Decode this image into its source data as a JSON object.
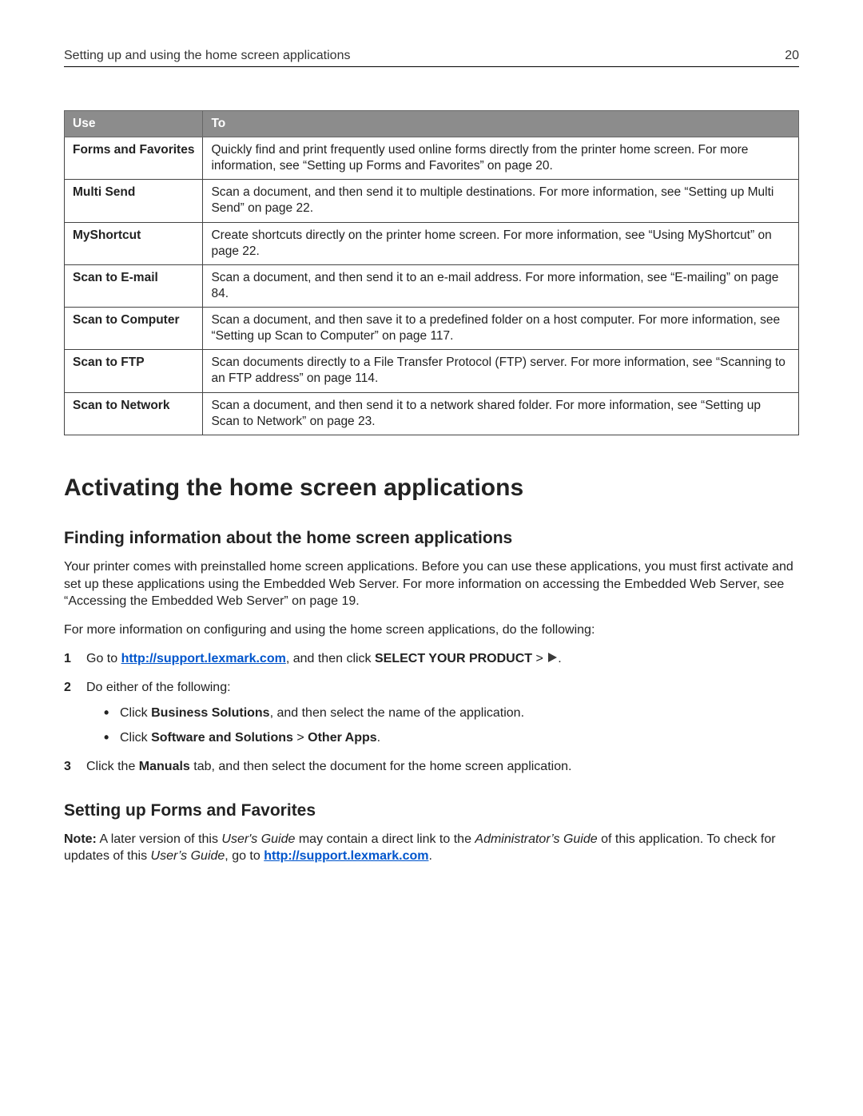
{
  "header": {
    "title": "Setting up and using the home screen applications",
    "page": "20"
  },
  "table": {
    "header_bg": "#8c8c8c",
    "header_fg": "#ffffff",
    "border_color": "#444444",
    "col_use": "Use",
    "col_to": "To",
    "rows": [
      {
        "use": "Forms and Favorites",
        "to": "Quickly find and print frequently used online forms directly from the printer home screen. For more information, see “Setting up Forms and Favorites” on page 20."
      },
      {
        "use": "Multi Send",
        "to": "Scan a document, and then send it to multiple destinations. For more information, see “Setting up Multi Send” on page 22."
      },
      {
        "use": "MyShortcut",
        "to": "Create shortcuts directly on the printer home screen. For more information, see “Using MyShortcut” on page 22."
      },
      {
        "use": "Scan to E-mail",
        "to": "Scan a document, and then send it to an e-mail address. For more information, see “E-mailing” on page 84."
      },
      {
        "use": "Scan to Computer",
        "to": "Scan a document, and then save it to a predefined folder on a host computer. For more information, see “Setting up Scan to Computer” on page 117."
      },
      {
        "use": "Scan to FTP",
        "to": "Scan documents directly to a File Transfer Protocol (FTP) server. For more information, see “Scanning to an FTP address” on page 114."
      },
      {
        "use": "Scan to Network",
        "to": "Scan a document, and then send it to a network shared folder. For more information, see “Setting up Scan to Network” on page 23."
      }
    ]
  },
  "h1": "Activating the home screen applications",
  "h2_finding": "Finding information about the home screen applications",
  "para_intro": "Your printer comes with preinstalled home screen applications. Before you can use these applications, you must first activate and set up these applications using the Embedded Web Server. For more information on accessing the Embedded Web Server, see “Accessing the Embedded Web Server” on page 19.",
  "para_more": "For more information on configuring and using the home screen applications, do the following:",
  "steps": {
    "s1_pre": "Go to ",
    "s1_link": "http://support.lexmark.com",
    "s1_mid": ", and then click ",
    "s1_bold": "SELECT YOUR PRODUCT",
    "s1_post": " > ",
    "s1_tail": ".",
    "s2": "Do either of the following:",
    "s2_b1_pre": "Click ",
    "s2_b1_bold": "Business Solutions",
    "s2_b1_post": ", and then select the name of the application.",
    "s2_b2_pre": "Click ",
    "s2_b2_bold1": "Software and Solutions",
    "s2_b2_mid": " > ",
    "s2_b2_bold2": "Other Apps",
    "s2_b2_post": ".",
    "s3_pre": "Click the ",
    "s3_bold": "Manuals",
    "s3_post": " tab, and then select the document for the home screen application."
  },
  "h2_forms": "Setting up Forms and Favorites",
  "note": {
    "label": "Note:",
    "t1": " A later version of this ",
    "i1": "User's Guide",
    "t2": " may contain a direct link to the ",
    "i2": "Administrator’s Guide",
    "t3": " of this application. To check for updates of this ",
    "i3": "User’s Guide",
    "t4": ", go to ",
    "link": "http://support.lexmark.com",
    "t5": "."
  },
  "colors": {
    "link": "#0055cc"
  }
}
